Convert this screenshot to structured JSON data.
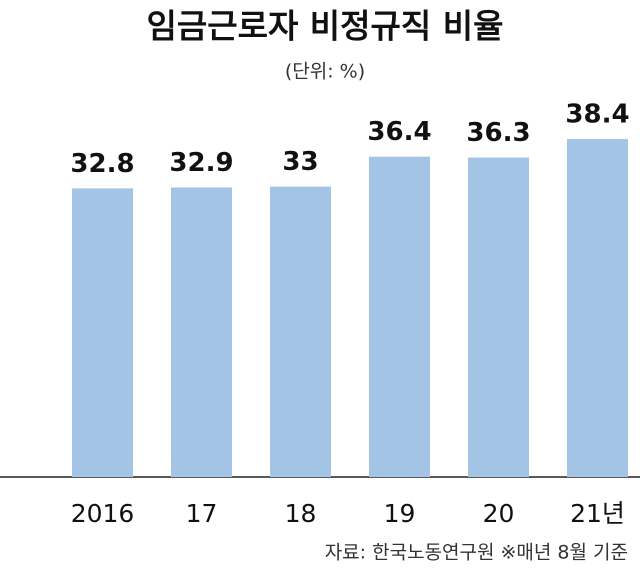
{
  "chart_data": {
    "type": "bar",
    "title": "임금근로자 비정규직 비율",
    "subtitle": "(단위: %)",
    "categories": [
      "2016",
      "17",
      "18",
      "19",
      "20",
      "21년"
    ],
    "values": [
      32.8,
      32.9,
      33,
      36.4,
      36.3,
      38.4
    ],
    "color": "#a3c4e4",
    "source": "자료: 한국노동연구원 ※매년 8월 기준"
  }
}
